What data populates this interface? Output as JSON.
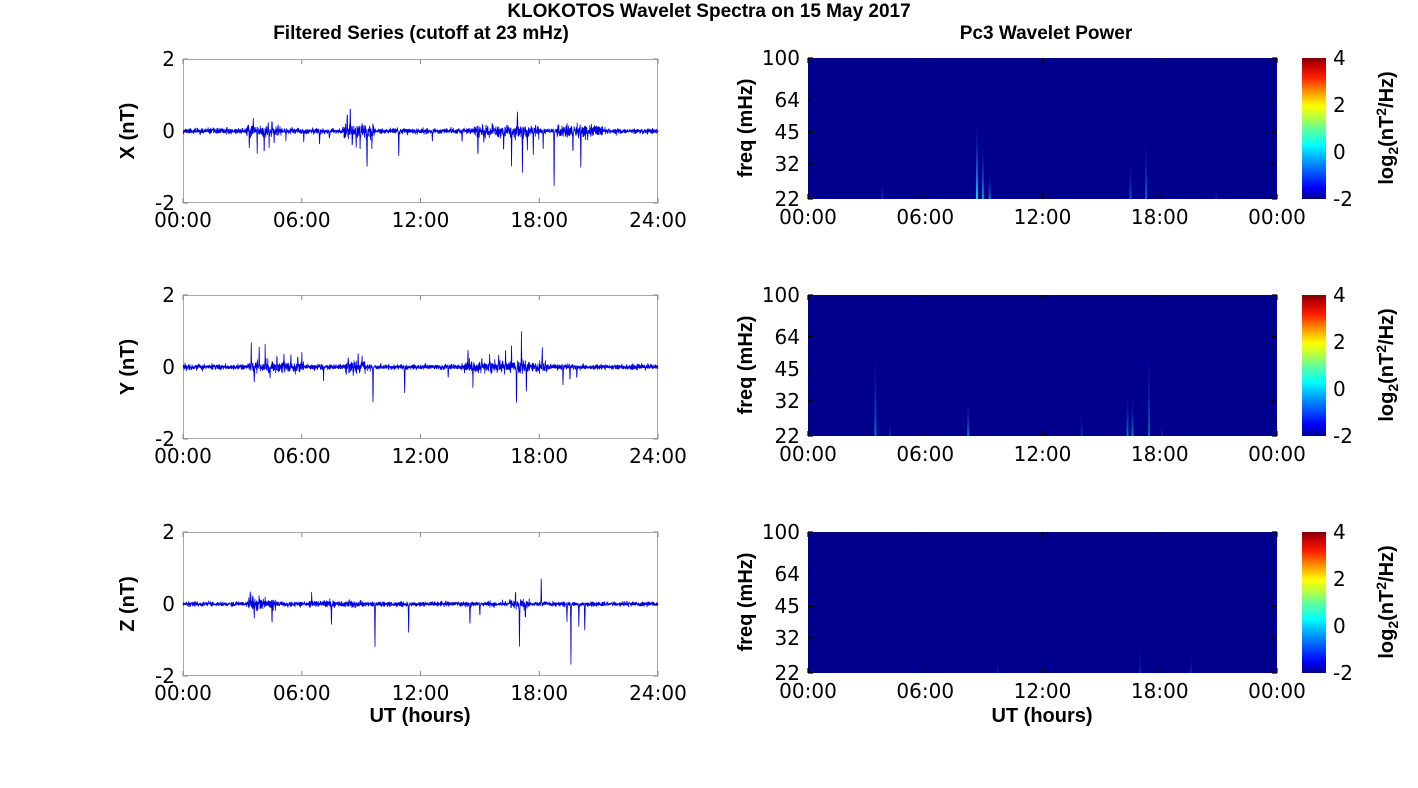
{
  "title": "KLOKOTOS Wavelet Spectra on 15 May 2017",
  "left_column_title": "Filtered Series (cutoff at 23 mHz)",
  "right_column_title": "Pc3 Wavelet Power",
  "colors": {
    "series_line": "#0000dd",
    "heat_background": "#00008c",
    "streak_core": "#00e8ff",
    "streak_glow": "#3366ff",
    "axis_border": "#a8a8a8",
    "axis_tick": "#888888",
    "heat_tick": "#000000",
    "text": "#000000"
  },
  "colorbar": {
    "label": "log2(nT^2/Hz)",
    "parts": {
      "p1": "log",
      "sub": "2",
      "p2": "(nT",
      "sup": "2",
      "p3": "/Hz)"
    },
    "tick_labels": [
      "4",
      "2",
      "0",
      "-2"
    ],
    "tick_values": [
      4,
      2,
      0,
      -2
    ],
    "range": [
      -2,
      4
    ],
    "colormap": "jet",
    "jet_stops": [
      [
        0,
        "#00008f"
      ],
      [
        0.08,
        "#0000ff"
      ],
      [
        0.3,
        "#00b4ff"
      ],
      [
        0.38,
        "#00ffff"
      ],
      [
        0.5,
        "#66ff94"
      ],
      [
        0.58,
        "#baff3d"
      ],
      [
        0.66,
        "#ffff00"
      ],
      [
        0.76,
        "#ff9400"
      ],
      [
        0.86,
        "#ff2000"
      ],
      [
        0.95,
        "#c00000"
      ],
      [
        1,
        "#7f0000"
      ]
    ]
  },
  "chart_data": [
    {
      "type": "line",
      "series_name": "X filtered",
      "ylabel": "X (nT)",
      "xlabel": "",
      "ylim": [
        -2,
        2
      ],
      "ytick_labels": [
        "2",
        "0",
        "-2"
      ],
      "x_range_hours": [
        0,
        24
      ],
      "xtick_labels": [
        "00:00",
        "06:00",
        "12:00",
        "18:00",
        "24:00"
      ],
      "noise_std_nT": 0.035,
      "seed": 11,
      "noise_bursts": [
        [
          3.2,
          4.9,
          2.2
        ],
        [
          8.1,
          9.7,
          3.0
        ],
        [
          14.7,
          18.0,
          2.2
        ],
        [
          18.9,
          21.2,
          2.5
        ]
      ],
      "spike_fields": [
        "hour",
        "amplitude_nT"
      ],
      "spikes": [
        [
          3.35,
          -0.45
        ],
        [
          3.55,
          0.3
        ],
        [
          3.75,
          -0.55
        ],
        [
          4.1,
          -0.5
        ],
        [
          4.35,
          -0.35
        ],
        [
          4.6,
          -0.3
        ],
        [
          5.2,
          -0.25
        ],
        [
          6.1,
          -0.3
        ],
        [
          6.9,
          -0.35
        ],
        [
          7.4,
          -0.25
        ],
        [
          8.3,
          0.45
        ],
        [
          8.45,
          0.6
        ],
        [
          8.55,
          -0.5
        ],
        [
          8.75,
          -0.45
        ],
        [
          8.95,
          -0.35
        ],
        [
          9.3,
          -1.05
        ],
        [
          9.55,
          -0.4
        ],
        [
          10.9,
          -0.75
        ],
        [
          12.6,
          -0.25
        ],
        [
          14.1,
          -0.3
        ],
        [
          14.9,
          -0.65
        ],
        [
          15.2,
          -0.5
        ],
        [
          16.2,
          -0.5
        ],
        [
          16.6,
          -1.0
        ],
        [
          16.9,
          0.5
        ],
        [
          17.15,
          -1.1
        ],
        [
          17.4,
          -0.45
        ],
        [
          17.7,
          -0.6
        ],
        [
          18.2,
          -0.45
        ],
        [
          18.75,
          -1.5
        ],
        [
          19.7,
          -0.55
        ],
        [
          20.1,
          -0.9
        ],
        [
          20.45,
          -0.35
        ]
      ]
    },
    {
      "type": "line",
      "series_name": "Y filtered",
      "ylabel": "Y (nT)",
      "xlabel": "",
      "ylim": [
        -2,
        2
      ],
      "ytick_labels": [
        "2",
        "0",
        "-2"
      ],
      "x_range_hours": [
        0,
        24
      ],
      "xtick_labels": [
        "00:00",
        "06:00",
        "12:00",
        "18:00",
        "24:00"
      ],
      "noise_std_nT": 0.035,
      "seed": 22,
      "noise_bursts": [
        [
          3.3,
          6.1,
          2.0
        ],
        [
          8.2,
          9.2,
          2.2
        ],
        [
          14.2,
          18.4,
          2.2
        ]
      ],
      "spike_fields": [
        "hour",
        "amplitude_nT"
      ],
      "spikes": [
        [
          3.45,
          0.65
        ],
        [
          3.6,
          -0.35
        ],
        [
          3.85,
          0.5
        ],
        [
          4.15,
          0.45
        ],
        [
          4.4,
          -0.35
        ],
        [
          4.75,
          0.3
        ],
        [
          5.1,
          0.28
        ],
        [
          5.45,
          0.32
        ],
        [
          5.8,
          0.35
        ],
        [
          6.0,
          0.3
        ],
        [
          7.1,
          -0.35
        ],
        [
          8.35,
          0.35
        ],
        [
          8.6,
          -0.3
        ],
        [
          8.85,
          0.35
        ],
        [
          9.05,
          0.3
        ],
        [
          9.6,
          -1.0
        ],
        [
          11.2,
          -0.75
        ],
        [
          13.4,
          -0.25
        ],
        [
          14.4,
          0.4
        ],
        [
          14.65,
          -0.45
        ],
        [
          15.1,
          0.35
        ],
        [
          15.5,
          0.3
        ],
        [
          15.95,
          0.4
        ],
        [
          16.3,
          0.35
        ],
        [
          16.6,
          0.6
        ],
        [
          16.85,
          -0.95
        ],
        [
          17.1,
          0.85
        ],
        [
          17.35,
          -0.6
        ],
        [
          18.15,
          0.55
        ],
        [
          19.2,
          -0.5
        ],
        [
          19.55,
          -0.35
        ],
        [
          19.9,
          -0.3
        ]
      ]
    },
    {
      "type": "line",
      "series_name": "Z filtered",
      "ylabel": "Z (nT)",
      "xlabel": "UT (hours)",
      "ylim": [
        -2,
        2
      ],
      "ytick_labels": [
        "2",
        "0",
        "-2"
      ],
      "x_range_hours": [
        0,
        24
      ],
      "xtick_labels": [
        "00:00",
        "06:00",
        "12:00",
        "18:00",
        "24:00"
      ],
      "noise_std_nT": 0.03,
      "seed": 33,
      "noise_bursts": [
        [
          3.3,
          4.7,
          2.5
        ],
        [
          6.3,
          9.0,
          1.5
        ],
        [
          16.5,
          17.5,
          2.0
        ]
      ],
      "spike_fields": [
        "hour",
        "amplitude_nT"
      ],
      "spikes": [
        [
          3.4,
          0.3
        ],
        [
          3.6,
          -0.4
        ],
        [
          3.85,
          0.25
        ],
        [
          4.5,
          -0.5
        ],
        [
          6.5,
          0.25
        ],
        [
          7.5,
          -0.55
        ],
        [
          9.7,
          -1.2
        ],
        [
          11.4,
          -0.8
        ],
        [
          14.5,
          -0.55
        ],
        [
          15.0,
          -0.3
        ],
        [
          16.8,
          0.3
        ],
        [
          17.0,
          -1.15
        ],
        [
          17.3,
          -0.4
        ],
        [
          18.1,
          0.65
        ],
        [
          19.4,
          -0.5
        ],
        [
          19.6,
          -1.65
        ],
        [
          20.0,
          -0.6
        ],
        [
          20.3,
          -0.75
        ]
      ]
    },
    {
      "type": "heatmap",
      "series_name": "X wavelet power",
      "ylabel": "freq (mHz)",
      "xlabel": "",
      "yscale": "log",
      "ylim_mhz": [
        22,
        100
      ],
      "ytick_labels": [
        "100",
        "64",
        "45",
        "32",
        "22"
      ],
      "ytick_values": [
        100,
        64,
        45,
        32,
        22
      ],
      "x_range_hours": [
        0,
        24
      ],
      "xtick_labels": [
        "00:00",
        "06:00",
        "12:00",
        "18:00",
        "00:00"
      ],
      "background_value_log2": -2,
      "streak_fields": [
        "hour",
        "max_freq_mHz",
        "relative_intensity"
      ],
      "streaks": [
        [
          3.8,
          27,
          0.25
        ],
        [
          8.65,
          55,
          0.95
        ],
        [
          8.95,
          42,
          0.7
        ],
        [
          9.3,
          30,
          0.55
        ],
        [
          16.5,
          36,
          0.4
        ],
        [
          17.3,
          46,
          0.45
        ],
        [
          20.9,
          25,
          0.2
        ]
      ]
    },
    {
      "type": "heatmap",
      "series_name": "Y wavelet power",
      "ylabel": "freq (mHz)",
      "xlabel": "",
      "yscale": "log",
      "ylim_mhz": [
        22,
        100
      ],
      "ytick_labels": [
        "100",
        "64",
        "45",
        "32",
        "22"
      ],
      "ytick_values": [
        100,
        64,
        45,
        32,
        22
      ],
      "x_range_hours": [
        0,
        24
      ],
      "xtick_labels": [
        "00:00",
        "06:00",
        "12:00",
        "18:00",
        "00:00"
      ],
      "background_value_log2": -2,
      "streak_fields": [
        "hour",
        "max_freq_mHz",
        "relative_intensity"
      ],
      "streaks": [
        [
          3.45,
          60,
          0.5
        ],
        [
          4.2,
          26,
          0.25
        ],
        [
          8.2,
          34,
          0.55
        ],
        [
          14.0,
          30,
          0.25
        ],
        [
          16.35,
          37,
          0.5
        ],
        [
          16.6,
          35,
          0.55
        ],
        [
          17.45,
          60,
          0.45
        ],
        [
          18.1,
          26,
          0.2
        ]
      ]
    },
    {
      "type": "heatmap",
      "series_name": "Z wavelet power",
      "ylabel": "freq (mHz)",
      "xlabel": "UT (hours)",
      "yscale": "log",
      "ylim_mhz": [
        22,
        100
      ],
      "ytick_labels": [
        "100",
        "64",
        "45",
        "32",
        "22"
      ],
      "ytick_values": [
        100,
        64,
        45,
        32,
        22
      ],
      "x_range_hours": [
        0,
        24
      ],
      "xtick_labels": [
        "00:00",
        "06:00",
        "12:00",
        "18:00",
        "00:00"
      ],
      "background_value_log2": -2,
      "streak_fields": [
        "hour",
        "max_freq_mHz",
        "relative_intensity"
      ],
      "streaks": [
        [
          9.7,
          26,
          0.18
        ],
        [
          17.0,
          30,
          0.2
        ],
        [
          19.6,
          28,
          0.15
        ]
      ]
    }
  ]
}
